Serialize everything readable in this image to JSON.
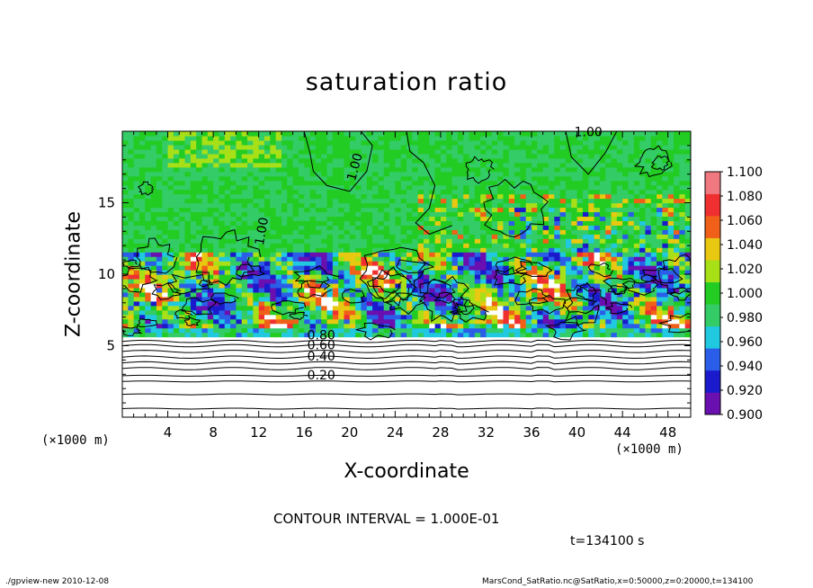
{
  "chart_data": {
    "type": "heatmap",
    "title": "saturation ratio",
    "xlabel": "X-coordinate",
    "ylabel": "Z-coordinate",
    "x_unit": "(×1000 m)",
    "y_unit": "(×1000 m)",
    "xlim": [
      0,
      50
    ],
    "ylim": [
      0,
      20
    ],
    "x_ticks": [
      4,
      8,
      12,
      16,
      20,
      24,
      28,
      32,
      36,
      40,
      44,
      48
    ],
    "y_ticks": [
      5,
      10,
      15
    ],
    "colorbar": {
      "levels": [
        0.9,
        0.92,
        0.94,
        0.96,
        0.98,
        1.0,
        1.02,
        1.04,
        1.06,
        1.08,
        1.1
      ],
      "labels": [
        "0.900",
        "0.920",
        "0.940",
        "0.960",
        "0.980",
        "1.000",
        "1.020",
        "1.040",
        "1.060",
        "1.080",
        "1.100"
      ],
      "colors": [
        "#6a0fb0",
        "#1a1acc",
        "#2a5ee8",
        "#20c8e0",
        "#33cc66",
        "#22cc22",
        "#a8e018",
        "#e8c810",
        "#f06018",
        "#f03030",
        "#f07880"
      ]
    },
    "contour_labels": [
      {
        "text": "0.20",
        "x": 17.5,
        "y": 2.9
      },
      {
        "text": "0.40",
        "x": 17.5,
        "y": 4.2
      },
      {
        "text": "0.60",
        "x": 17.5,
        "y": 5.0
      },
      {
        "text": "0.80",
        "x": 17.5,
        "y": 5.7
      },
      {
        "text": "1.00",
        "x": 20.5,
        "y": 17.5
      },
      {
        "text": "1.00",
        "x": 12.3,
        "y": 13.0
      },
      {
        "text": "1.00",
        "x": 41.0,
        "y": 19.9
      }
    ],
    "contour_interval_text": "CONTOUR INTERVAL = 1.000E-01",
    "time_text": "t=134100 s"
  },
  "footer": {
    "left": "./gpview-new  2010-12-08",
    "right": "MarsCond_SatRatio.nc@SatRatio,x=0:50000,z=0:20000,t=134100"
  },
  "colors": {
    "supersat_white": "#ffffff",
    "background_green": "#22cc22"
  }
}
